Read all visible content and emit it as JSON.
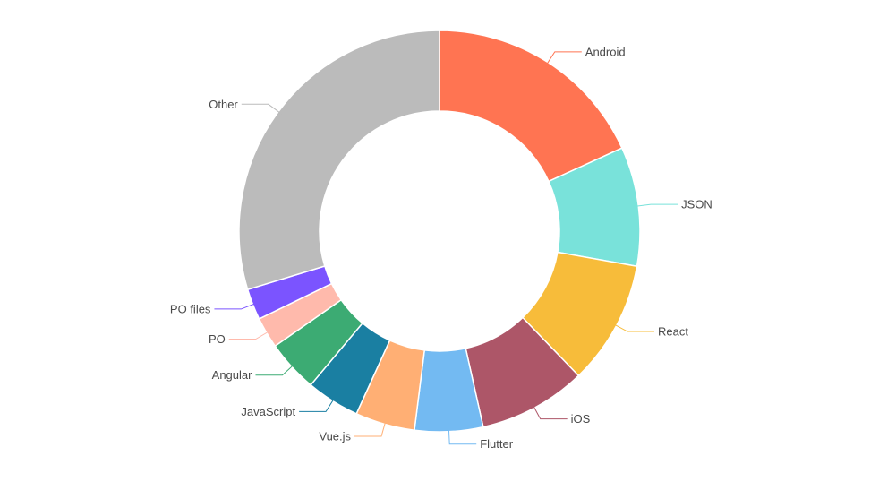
{
  "chart_data": {
    "type": "pie",
    "variant": "donut",
    "title": "",
    "legend": "none",
    "slices": [
      {
        "label": "Android",
        "value": 18.2,
        "color": "#FF7452"
      },
      {
        "label": "JSON",
        "value": 9.6,
        "color": "#79E2DA"
      },
      {
        "label": "React",
        "value": 10.0,
        "color": "#F7BC3A"
      },
      {
        "label": "iOS",
        "value": 8.7,
        "color": "#AD5668"
      },
      {
        "label": "Flutter",
        "value": 5.5,
        "color": "#73BAF2"
      },
      {
        "label": "Vue.js",
        "value": 4.8,
        "color": "#FFAF74"
      },
      {
        "label": "JavaScript",
        "value": 4.3,
        "color": "#1A7FA2"
      },
      {
        "label": "Angular",
        "value": 4.2,
        "color": "#3CAB73"
      },
      {
        "label": "PO",
        "value": 2.5,
        "color": "#FFBAAC"
      },
      {
        "label": "PO files",
        "value": 2.5,
        "color": "#7B54FF"
      },
      {
        "label": "Other",
        "value": 29.7,
        "color": "#BBBBBB"
      }
    ]
  }
}
